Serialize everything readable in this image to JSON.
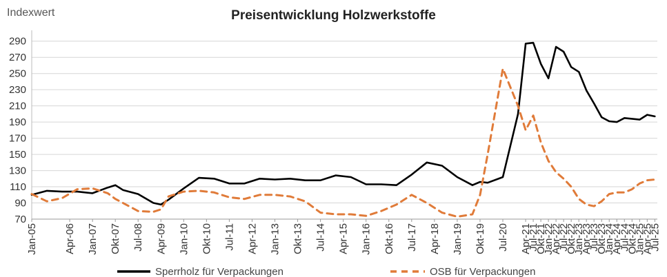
{
  "chart_data": {
    "type": "line",
    "title": "Preisentwicklung Holzwerkstoffe",
    "ylabel": "Indexwert",
    "xlabel": "",
    "ylim": [
      70,
      300
    ],
    "yticks": [
      70,
      90,
      110,
      130,
      150,
      170,
      190,
      210,
      230,
      250,
      270,
      290
    ],
    "grid": true,
    "legend_position": "bottom",
    "x_tick_labels": [
      "Jan-05",
      "Apr-06",
      "Jan-07",
      "Okt-07",
      "Jul-08",
      "Apr-09",
      "Jan-10",
      "Okt-10",
      "Jul-11",
      "Apr-12",
      "Jan-13",
      "Okt-13",
      "Jul-14",
      "Apr-15",
      "Jan-16",
      "Okt-16",
      "Jul-17",
      "Apr-18",
      "Jan-19",
      "Okt-19",
      "Jul-20",
      "Apr-21",
      "Jul-21",
      "Okt-21",
      "Jan-22",
      "Apr-22",
      "Jul-22",
      "Okt-22",
      "Jan-23",
      "Apr-23",
      "Jul-23",
      "Okt-23",
      "Jan-24",
      "Apr-24",
      "Jul-24",
      "Okt-24",
      "Jan-25",
      "Apr-25",
      "Jul-25"
    ],
    "series": [
      {
        "name": "Sperrholz für Verpackungen",
        "color": "#000000",
        "style": "solid",
        "x": [
          "Jan-05",
          "Jul-05",
          "Jan-06",
          "Jul-06",
          "Jan-07",
          "Jul-07",
          "Okt-07",
          "Jan-08",
          "Jul-08",
          "Jan-09",
          "Apr-09",
          "Jul-09",
          "Jan-10",
          "Jul-10",
          "Jan-11",
          "Jul-11",
          "Jan-12",
          "Jul-12",
          "Jan-13",
          "Jul-13",
          "Jan-14",
          "Jul-14",
          "Jan-15",
          "Jul-15",
          "Jan-16",
          "Jul-16",
          "Jan-17",
          "Jul-17",
          "Jan-18",
          "Jul-18",
          "Jan-19",
          "Jul-19",
          "Okt-19",
          "Jan-20",
          "Jul-20",
          "Jan-21",
          "Apr-21",
          "Jul-21",
          "Okt-21",
          "Jan-22",
          "Apr-22",
          "Jul-22",
          "Okt-22",
          "Jan-23",
          "Apr-23",
          "Jul-23",
          "Okt-23",
          "Jan-24",
          "Apr-24",
          "Jul-24",
          "Okt-24",
          "Jan-25",
          "Apr-25",
          "Jul-25"
        ],
        "values": [
          100,
          105,
          104,
          104,
          102,
          109,
          112,
          106,
          101,
          90,
          88,
          94,
          108,
          121,
          120,
          114,
          114,
          120,
          119,
          120,
          118,
          118,
          124,
          122,
          113,
          113,
          112,
          125,
          140,
          136,
          122,
          112,
          116,
          115,
          122,
          200,
          287,
          288,
          262,
          244,
          283,
          277,
          258,
          252,
          229,
          213,
          196,
          191,
          190,
          195,
          194,
          193,
          199,
          197
        ]
      },
      {
        "name": "OSB für Verpackungen",
        "color": "#e07b39",
        "style": "dashed",
        "x": [
          "Jan-05",
          "Jul-05",
          "Jan-06",
          "Jul-06",
          "Jan-07",
          "Jul-07",
          "Okt-07",
          "Jan-08",
          "Jul-08",
          "Jan-09",
          "Apr-09",
          "Jul-09",
          "Jan-10",
          "Jul-10",
          "Jan-11",
          "Jul-11",
          "Jan-12",
          "Jul-12",
          "Jan-13",
          "Jul-13",
          "Jan-14",
          "Jul-14",
          "Jan-15",
          "Jul-15",
          "Jan-16",
          "Jul-16",
          "Jan-17",
          "Jul-17",
          "Jan-18",
          "Jul-18",
          "Jan-19",
          "Jul-19",
          "Okt-19",
          "Jan-20",
          "Jul-20",
          "Jan-21",
          "Apr-21",
          "Jul-21",
          "Okt-21",
          "Jan-22",
          "Apr-22",
          "Jul-22",
          "Okt-22",
          "Jan-23",
          "Apr-23",
          "Jul-23",
          "Okt-23",
          "Jan-24",
          "Apr-24",
          "Jul-24",
          "Okt-24",
          "Jan-25",
          "Apr-25",
          "Jul-25"
        ],
        "values": [
          101,
          92,
          96,
          107,
          108,
          102,
          95,
          90,
          80,
          79,
          82,
          98,
          104,
          105,
          103,
          97,
          95,
          100,
          100,
          98,
          92,
          78,
          76,
          76,
          74,
          80,
          88,
          100,
          90,
          78,
          73,
          76,
          100,
          150,
          256,
          210,
          180,
          198,
          165,
          142,
          128,
          120,
          110,
          95,
          88,
          86,
          92,
          101,
          103,
          103,
          107,
          114,
          118,
          119
        ]
      }
    ]
  }
}
